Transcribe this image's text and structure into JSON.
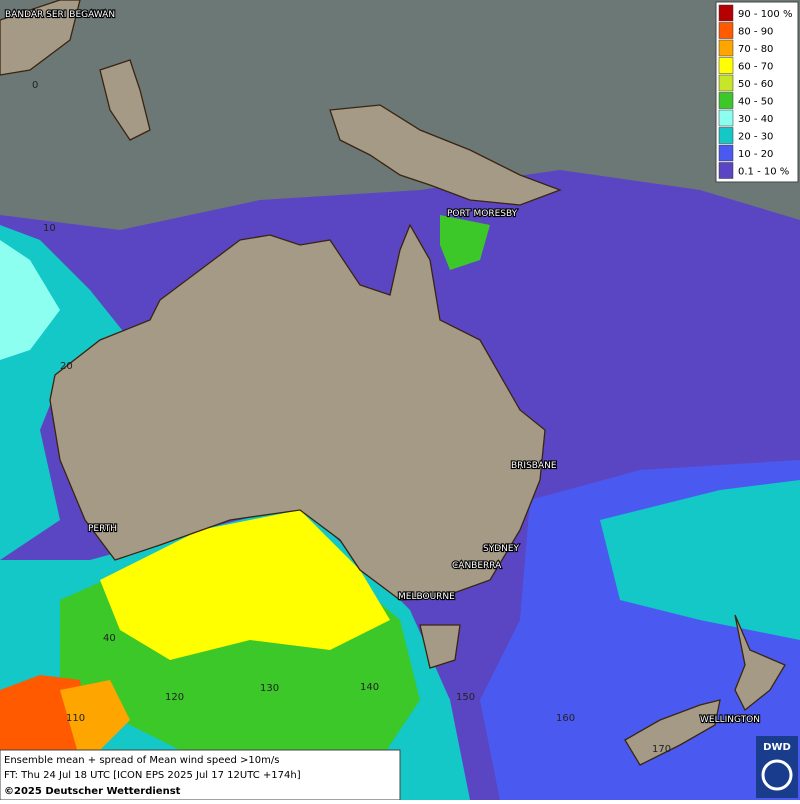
{
  "cities": [
    "BANDAR SERI BEGAWAN",
    "PORT MORESBY",
    "BRISBANE",
    "SYDNEY",
    "CANBERRA",
    "MELBOURNE",
    "PERTH",
    "WELLINGTON"
  ],
  "grid_labels": [
    "0",
    "10",
    "20",
    "40",
    "110",
    "120",
    "130",
    "140",
    "150",
    "160",
    "170"
  ],
  "legend": {
    "items": [
      {
        "label": "90 - 100 %",
        "color": "#b40000"
      },
      {
        "label": "80 - 90",
        "color": "#ff5a00"
      },
      {
        "label": "70 - 80",
        "color": "#ffa500"
      },
      {
        "label": "60 - 70",
        "color": "#ffff00"
      },
      {
        "label": "50 - 60",
        "color": "#c8e628"
      },
      {
        "label": "40 - 50",
        "color": "#3cc828"
      },
      {
        "label": "30 - 40",
        "color": "#8cfff0"
      },
      {
        "label": "20 - 30",
        "color": "#14c8c8"
      },
      {
        "label": "10 - 20",
        "color": "#4a5af0"
      },
      {
        "label": "0.1 - 10 %",
        "color": "#5a46c3"
      }
    ]
  },
  "caption": [
    "Ensemble mean + spread of Mean wind speed >10m/s",
    "FT: Thu 24 Jul 18 UTC [ICON EPS 2025 Jul 17 12UTC +174h]",
    "©2025 Deutscher Wetterdienst"
  ],
  "logo": "DWD"
}
